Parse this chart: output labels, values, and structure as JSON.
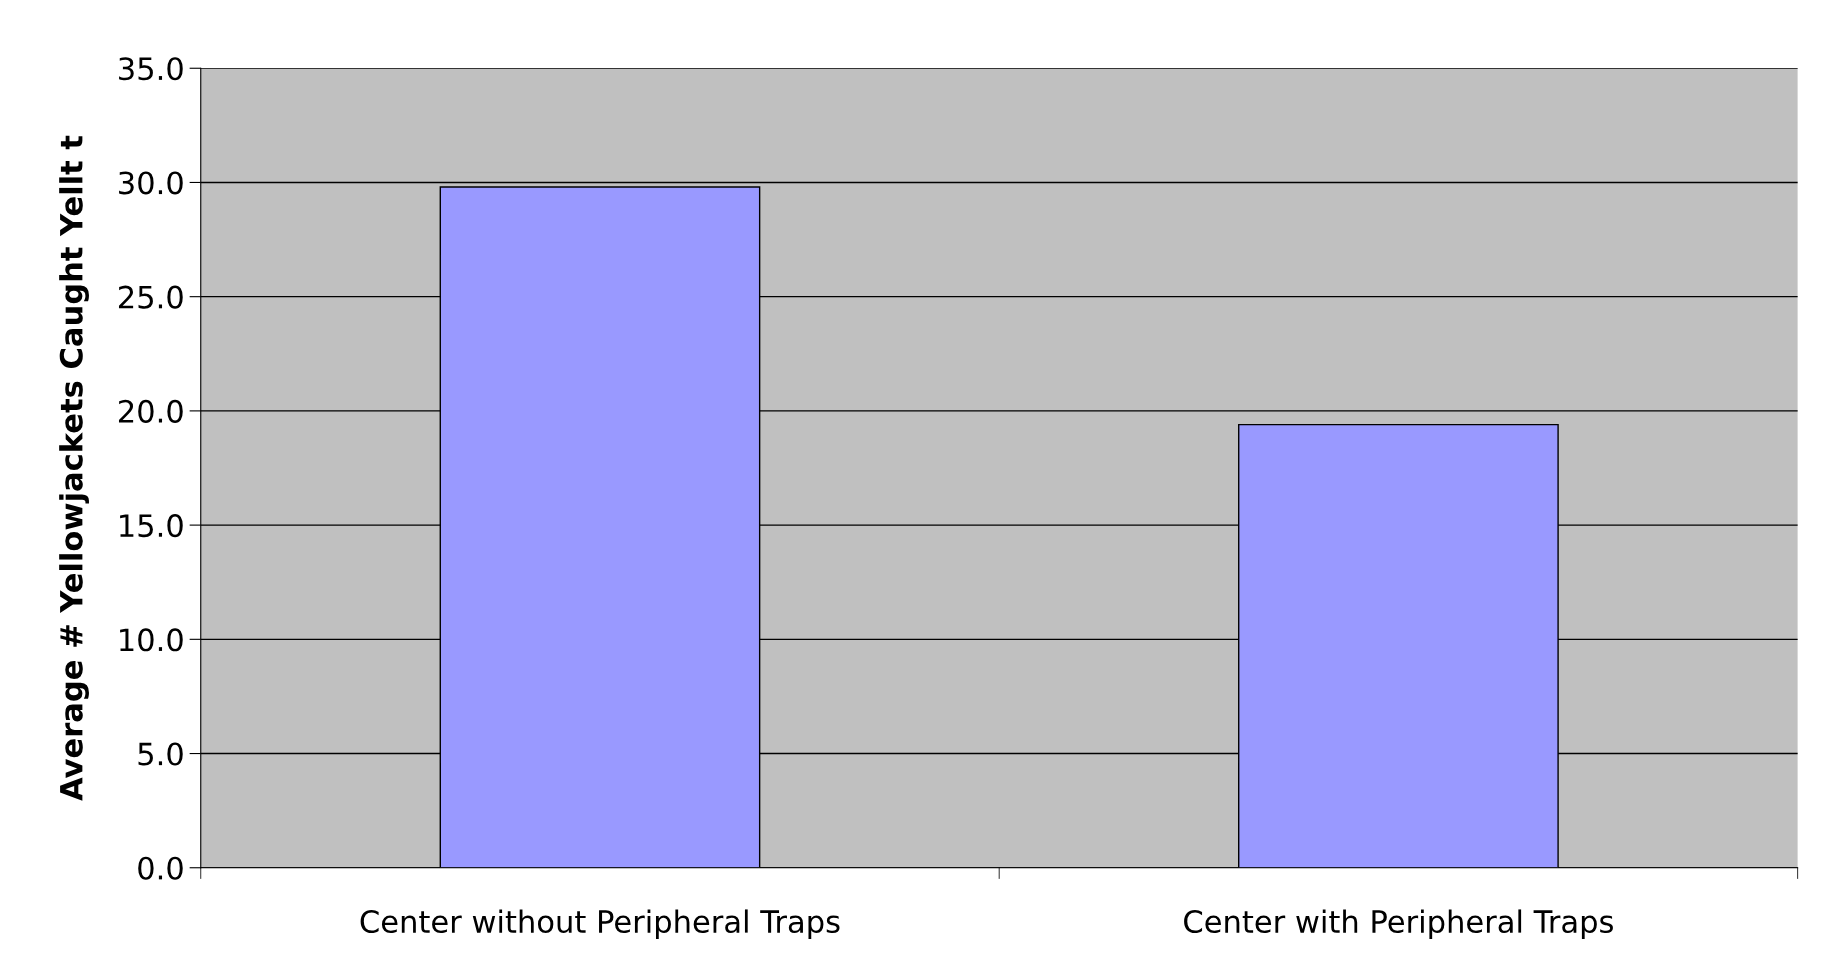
{
  "chart_data": {
    "type": "bar",
    "ylabel": "Average # Yellowjackets Caught Yellt t",
    "categories": [
      "Center without Peripheral Traps",
      "Center with Peripheral Traps"
    ],
    "values": [
      29.8,
      19.4
    ],
    "color": "#9999ff",
    "ylim": [
      0,
      35
    ],
    "yticks": [
      {
        "value": 0,
        "label": "0.0"
      },
      {
        "value": 5,
        "label": "5.0"
      },
      {
        "value": 10,
        "label": "10.0"
      },
      {
        "value": 15,
        "label": "15.0"
      },
      {
        "value": 20,
        "label": "20.0"
      },
      {
        "value": 25,
        "label": "25.0"
      },
      {
        "value": 30,
        "label": "30.0"
      },
      {
        "value": 35,
        "label": "35.0"
      }
    ],
    "grid": "y"
  }
}
